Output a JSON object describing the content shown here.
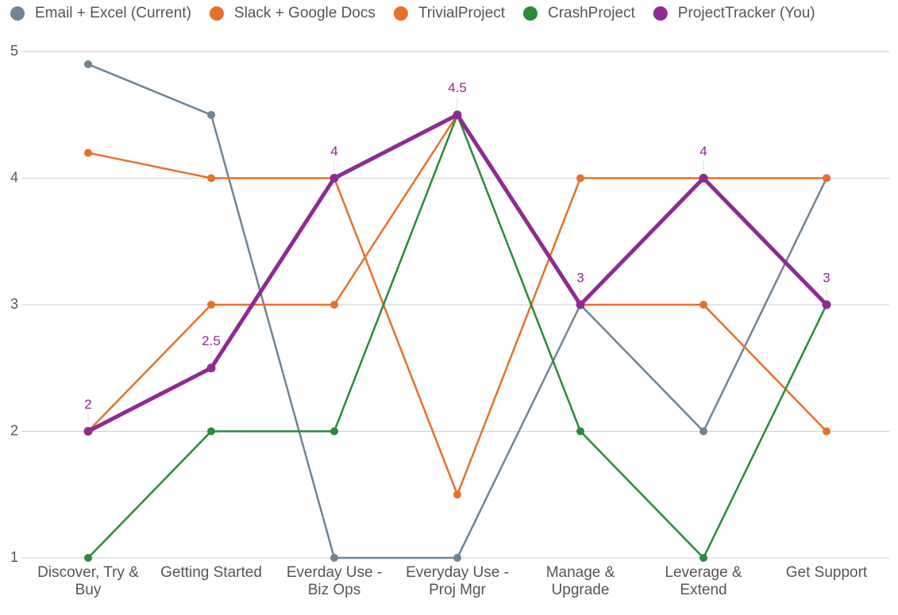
{
  "chart_data": {
    "type": "line",
    "categories": [
      "Discover, Try & Buy",
      "Getting Started",
      "Everday Use - Biz Ops",
      "Everyday Use - Proj Mgr",
      "Manage & Upgrade",
      "Leverage & Extend",
      "Get Support"
    ],
    "series": [
      {
        "name": "Email + Excel (Current)",
        "color": "#6f8494",
        "values": [
          4.9,
          4.5,
          1,
          1,
          3,
          2,
          4
        ]
      },
      {
        "name": "Slack + Google Docs",
        "color": "#e8712a",
        "values": [
          4.2,
          4,
          4,
          1.5,
          4,
          4,
          4
        ]
      },
      {
        "name": "TrivialProject",
        "color": "#e8712a",
        "values": [
          2,
          3,
          3,
          4.5,
          3,
          3,
          2
        ]
      },
      {
        "name": "CrashProject",
        "color": "#2a8a3a",
        "values": [
          1,
          2,
          2,
          4.5,
          2,
          1,
          3
        ]
      },
      {
        "name": "ProjectTracker (You)",
        "color": "#8e2b91",
        "values": [
          2,
          2.5,
          4,
          4.5,
          3,
          4,
          3
        ],
        "data_labels": true
      }
    ],
    "ylim": [
      1,
      5
    ],
    "yticks": [
      1,
      2,
      3,
      4,
      5
    ],
    "grid": true,
    "legend": "top"
  }
}
